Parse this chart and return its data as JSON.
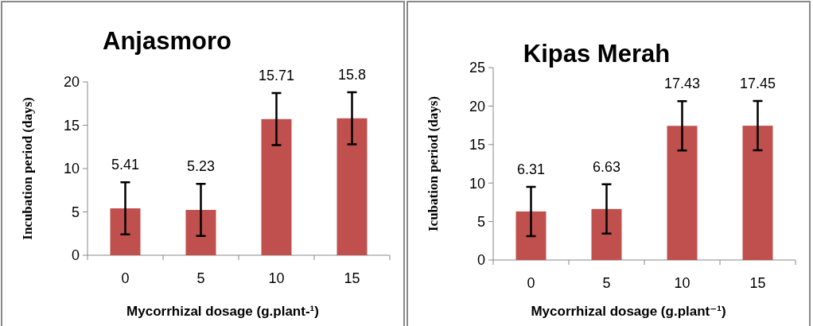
{
  "chart_data": [
    {
      "type": "bar",
      "title": "Anjasmoro",
      "xlabel": "Mycorrhizal dosage  (g.plant-¹)",
      "ylabel": "Incubation period (days)",
      "categories": [
        "0",
        "5",
        "10",
        "15"
      ],
      "values": [
        5.41,
        5.23,
        15.71,
        15.8
      ],
      "errors": [
        3,
        3,
        3,
        3
      ],
      "color": "#c0504d",
      "ylim": [
        0,
        20
      ],
      "yticks": [
        0,
        5,
        10,
        15,
        20
      ],
      "data_labels": true
    },
    {
      "type": "bar",
      "title": "Kipas Merah",
      "xlabel": "Mycorrhizal dosage  (g.plant⁻¹)",
      "ylabel": "Icubation period (days)",
      "categories": [
        "0",
        "5",
        "10",
        "15"
      ],
      "values": [
        6.31,
        6.63,
        17.43,
        17.45
      ],
      "errors": [
        3.2,
        3.2,
        3.2,
        3.2
      ],
      "color": "#c0504d",
      "ylim": [
        0,
        25
      ],
      "yticks": [
        0,
        5,
        10,
        15,
        20,
        25
      ],
      "data_labels": true
    }
  ]
}
